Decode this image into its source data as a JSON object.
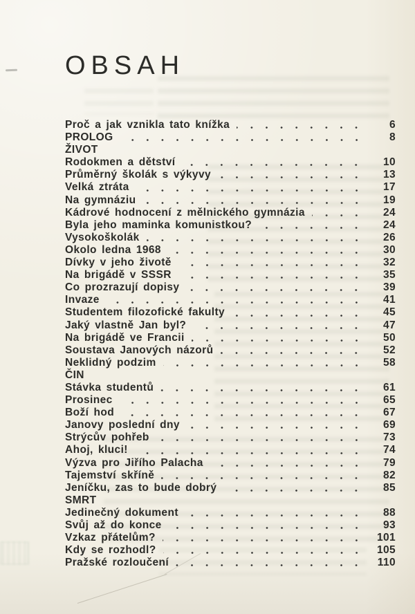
{
  "colors": {
    "paper": "#f2efe4",
    "ink": "#2c2c29",
    "dot": "#3a3a38",
    "bleed": "#9aa08f"
  },
  "scan": {
    "title": "OBSAH",
    "toc": {
      "items": [
        {
          "label": "Proč a jak vznikla tato knížka",
          "page": "6"
        },
        {
          "label": "PROLOG",
          "page": "8"
        },
        {
          "label": "ŽIVOT",
          "page": ""
        },
        {
          "label": "Rodokmen a dětství",
          "page": "10"
        },
        {
          "label": "Průměrný školák s výkyvy",
          "page": "13"
        },
        {
          "label": "Velká ztráta",
          "page": "17"
        },
        {
          "label": "Na gymnáziu",
          "page": "19"
        },
        {
          "label": "Kádrové hodnocení z mělnického gymnázia",
          "page": "24"
        },
        {
          "label": "Byla jeho maminka komunistkou?",
          "page": "24"
        },
        {
          "label": "Vysokoškolák",
          "page": "26"
        },
        {
          "label": "Okolo ledna 1968",
          "page": "30"
        },
        {
          "label": "Dívky v jeho životě",
          "page": "32"
        },
        {
          "label": "Na brigádě v SSSR",
          "page": "35"
        },
        {
          "label": "Co prozrazují dopisy",
          "page": "39"
        },
        {
          "label": "Invaze",
          "page": "41"
        },
        {
          "label": "Studentem filozofické fakulty",
          "page": "45"
        },
        {
          "label": "Jaký vlastně Jan byl?",
          "page": "47"
        },
        {
          "label": "Na brigádě ve Francii",
          "page": "50"
        },
        {
          "label": "Soustava Janových názorů",
          "page": "52"
        },
        {
          "label": "Neklidný podzim",
          "page": "58"
        },
        {
          "label": "ČIN",
          "page": ""
        },
        {
          "label": "Stávka studentů",
          "page": "61"
        },
        {
          "label": "Prosinec",
          "page": "65"
        },
        {
          "label": "Boží hod",
          "page": "67"
        },
        {
          "label": "Janovy poslední dny",
          "page": "69"
        },
        {
          "label": "Strýcův pohřeb",
          "page": "73"
        },
        {
          "label": "Ahoj, kluci!",
          "page": "74"
        },
        {
          "label": "Výzva pro Jiřího Palacha",
          "page": "79"
        },
        {
          "label": "Tajemství skříně",
          "page": "82"
        },
        {
          "label": "Jeníčku, zas to bude dobrý",
          "page": "85"
        },
        {
          "label": "SMRT",
          "page": ""
        },
        {
          "label": "Jedinečný dokument",
          "page": "88"
        },
        {
          "label": "Svůj až do konce",
          "page": "93"
        },
        {
          "label": "Vzkaz přátelům?",
          "page": "101"
        },
        {
          "label": "Kdy se rozhodl?",
          "page": "105"
        },
        {
          "label": "Pražské rozloučení",
          "page": "110"
        }
      ]
    }
  }
}
